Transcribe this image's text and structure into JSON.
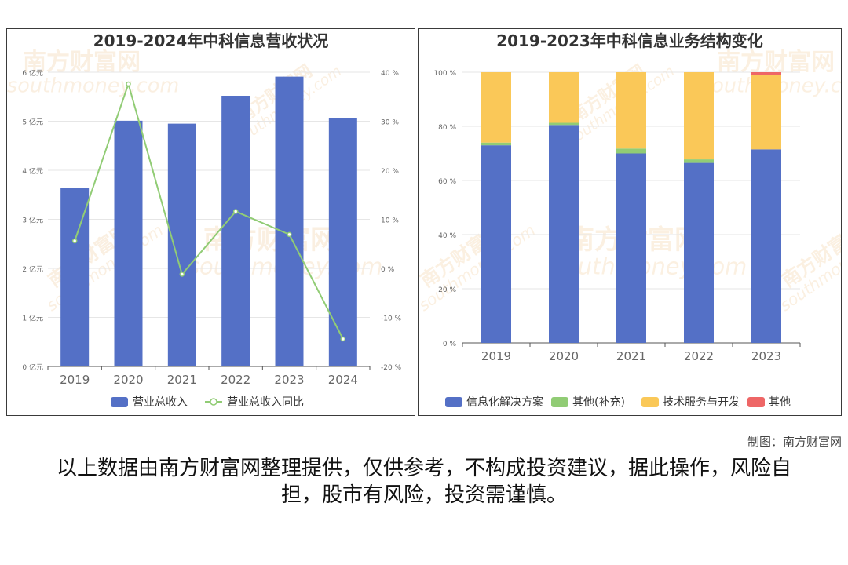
{
  "watermark": {
    "cn": "南方财富网",
    "en": "southmoney.com"
  },
  "credit": "制图：南方财富网",
  "disclaimer": "以上数据由南方财富网整理提供，仅供参考，不构成投资建议，据此操作，风险自担，股市有风险，投资需谨慎。",
  "colors": {
    "blue": "#5470c6",
    "green": "#91cc75",
    "yellow": "#fac858",
    "red": "#ee6666",
    "axis": "#666666",
    "grid": "#e6e6e6"
  },
  "chart_data": [
    {
      "type": "bar",
      "title": "2019-2024年中科信息营收状况",
      "categories": [
        "2019",
        "2020",
        "2021",
        "2022",
        "2023",
        "2024"
      ],
      "y_left": {
        "ylim": [
          0,
          6
        ],
        "ticks": [
          "0 亿元",
          "1 亿元",
          "2 亿元",
          "3 亿元",
          "4 亿元",
          "5 亿元",
          "6 亿元"
        ]
      },
      "y_right": {
        "ylim": [
          -20,
          40
        ],
        "ticks": [
          "-20 %",
          "-10 %",
          "0 %",
          "10 %",
          "20 %",
          "30 %",
          "40 %"
        ]
      },
      "series": [
        {
          "name": "营业总收入",
          "type": "bar",
          "axis": "left",
          "color": "#5470c6",
          "values": [
            3.64,
            5.01,
            4.95,
            5.52,
            5.91,
            5.06
          ]
        },
        {
          "name": "营业总收入同比",
          "type": "line",
          "axis": "right",
          "color": "#91cc75",
          "values": [
            5.6,
            37.6,
            -1.2,
            11.6,
            6.9,
            -14.4
          ]
        }
      ],
      "legend": "bottom-center"
    },
    {
      "type": "bar",
      "stacked": true,
      "title": "2019-2023年中科信息业务结构变化",
      "categories": [
        "2019",
        "2020",
        "2021",
        "2022",
        "2023"
      ],
      "y": {
        "ylim": [
          0,
          100
        ],
        "ticks": [
          "0 %",
          "20 %",
          "40 %",
          "60 %",
          "80 %",
          "100 %"
        ]
      },
      "series": [
        {
          "name": "信息化解决方案",
          "color": "#5470c6",
          "values": [
            73,
            80.5,
            70,
            66.5,
            71.5
          ]
        },
        {
          "name": "其他(补充)",
          "color": "#91cc75",
          "values": [
            1,
            0.8,
            1.8,
            1.3,
            0
          ]
        },
        {
          "name": "技术服务与开发",
          "color": "#fac858",
          "values": [
            26,
            18.7,
            28.2,
            32.2,
            27.5
          ]
        },
        {
          "name": "其他",
          "color": "#ee6666",
          "values": [
            0,
            0,
            0,
            0,
            1
          ]
        }
      ],
      "legend": "bottom-center"
    }
  ]
}
